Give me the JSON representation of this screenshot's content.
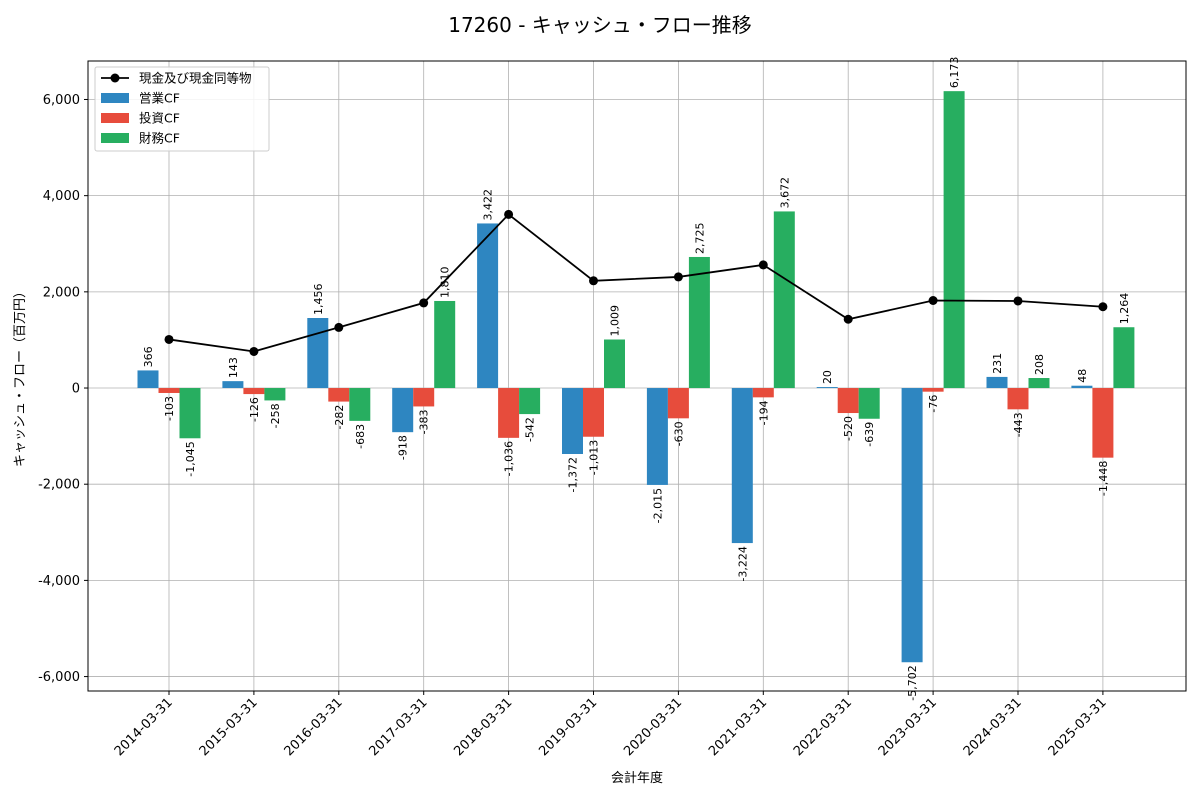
{
  "chart_data": {
    "type": "bar",
    "title": "17260 - キャッシュ・フロー推移",
    "xlabel": "会計年度",
    "ylabel": "キャッシュ・フロー（百万円）",
    "ylim": [
      -6300,
      6800
    ],
    "yticks": [
      -6000,
      -4000,
      -2000,
      0,
      2000,
      4000,
      6000
    ],
    "ytick_labels": [
      "-6,000",
      "-4,000",
      "-2,000",
      "0",
      "2,000",
      "4,000",
      "6,000"
    ],
    "grid": true,
    "legend_position": "top-left",
    "categories": [
      "2014-03-31",
      "2015-03-31",
      "2016-03-31",
      "2017-03-31",
      "2018-03-31",
      "2019-03-31",
      "2020-03-31",
      "2021-03-31",
      "2022-03-31",
      "2023-03-31",
      "2024-03-31",
      "2025-03-31"
    ],
    "series": [
      {
        "name": "営業CF",
        "kind": "bar",
        "color": "#2e86c1",
        "values": [
          366,
          143,
          1456,
          -918,
          3422,
          -1372,
          -2015,
          -3224,
          20,
          -5702,
          231,
          48
        ],
        "labels": [
          "366",
          "143",
          "1,456",
          "-918",
          "3,422",
          "-1,372",
          "-2,015",
          "-3,224",
          "20",
          "-5,702",
          "231",
          "48"
        ]
      },
      {
        "name": "投資CF",
        "kind": "bar",
        "color": "#e74c3c",
        "values": [
          -103,
          -126,
          -282,
          -383,
          -1036,
          -1013,
          -630,
          -194,
          -520,
          -76,
          -443,
          -1448
        ],
        "labels": [
          "-103",
          "-126",
          "-282",
          "-383",
          "-1,036",
          "-1,013",
          "-630",
          "-194",
          "-520",
          "-76",
          "-443",
          "-1,448"
        ]
      },
      {
        "name": "財務CF",
        "kind": "bar",
        "color": "#27ae60",
        "values": [
          -1045,
          -258,
          -683,
          1810,
          -542,
          1009,
          2725,
          3672,
          -639,
          6173,
          208,
          1264
        ],
        "labels": [
          "-1,045",
          "-258",
          "-683",
          "1,810",
          "-542",
          "1,009",
          "2,725",
          "3,672",
          "-639",
          "6,173",
          "208",
          "1,264"
        ]
      },
      {
        "name": "現金及び現金同等物",
        "kind": "line",
        "color": "#000000",
        "values": [
          1010,
          760,
          1260,
          1770,
          3610,
          2230,
          2310,
          2560,
          1430,
          1820,
          1810,
          1690
        ]
      }
    ]
  }
}
